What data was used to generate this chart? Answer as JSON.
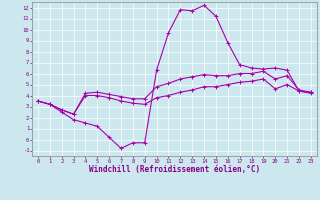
{
  "xlabel": "Windchill (Refroidissement éolien,°C)",
  "xlim": [
    -0.5,
    23.5
  ],
  "ylim": [
    -1.5,
    12.5
  ],
  "xticks": [
    0,
    1,
    2,
    3,
    4,
    5,
    6,
    7,
    8,
    9,
    10,
    11,
    12,
    13,
    14,
    15,
    16,
    17,
    18,
    19,
    20,
    21,
    22,
    23
  ],
  "yticks": [
    -1,
    0,
    1,
    2,
    3,
    4,
    5,
    6,
    7,
    8,
    9,
    10,
    11,
    12
  ],
  "bg_color": "#cce8ee",
  "line_color": "#aa00aa",
  "line1_x": [
    0,
    1,
    2,
    3,
    4,
    5,
    6,
    7,
    8,
    9,
    10,
    11,
    12,
    13,
    14,
    15,
    16,
    17,
    18,
    19,
    20,
    21,
    22,
    23
  ],
  "line1_y": [
    3.5,
    3.2,
    2.5,
    1.8,
    1.5,
    1.2,
    0.2,
    -0.8,
    -0.3,
    -0.3,
    6.3,
    9.7,
    11.8,
    11.7,
    12.2,
    11.2,
    8.8,
    6.8,
    6.5,
    6.4,
    6.5,
    6.3,
    4.4,
    4.3
  ],
  "line2_x": [
    0,
    1,
    2,
    3,
    4,
    5,
    6,
    7,
    8,
    9,
    10,
    11,
    12,
    13,
    14,
    15,
    16,
    17,
    18,
    19,
    20,
    21,
    22,
    23
  ],
  "line2_y": [
    3.5,
    3.2,
    2.7,
    2.3,
    4.2,
    4.3,
    4.1,
    3.9,
    3.7,
    3.7,
    4.8,
    5.1,
    5.5,
    5.7,
    5.9,
    5.8,
    5.8,
    6.0,
    6.0,
    6.2,
    5.5,
    5.8,
    4.5,
    4.3
  ],
  "line3_x": [
    0,
    1,
    2,
    3,
    4,
    5,
    6,
    7,
    8,
    9,
    10,
    11,
    12,
    13,
    14,
    15,
    16,
    17,
    18,
    19,
    20,
    21,
    22,
    23
  ],
  "line3_y": [
    3.5,
    3.2,
    2.7,
    2.3,
    4.0,
    4.0,
    3.8,
    3.5,
    3.3,
    3.2,
    3.8,
    4.0,
    4.3,
    4.5,
    4.8,
    4.8,
    5.0,
    5.2,
    5.3,
    5.5,
    4.6,
    5.0,
    4.4,
    4.2
  ],
  "tick_fontsize": 4.0,
  "xlabel_fontsize": 5.5,
  "marker_size": 2.5,
  "line_width": 0.8
}
